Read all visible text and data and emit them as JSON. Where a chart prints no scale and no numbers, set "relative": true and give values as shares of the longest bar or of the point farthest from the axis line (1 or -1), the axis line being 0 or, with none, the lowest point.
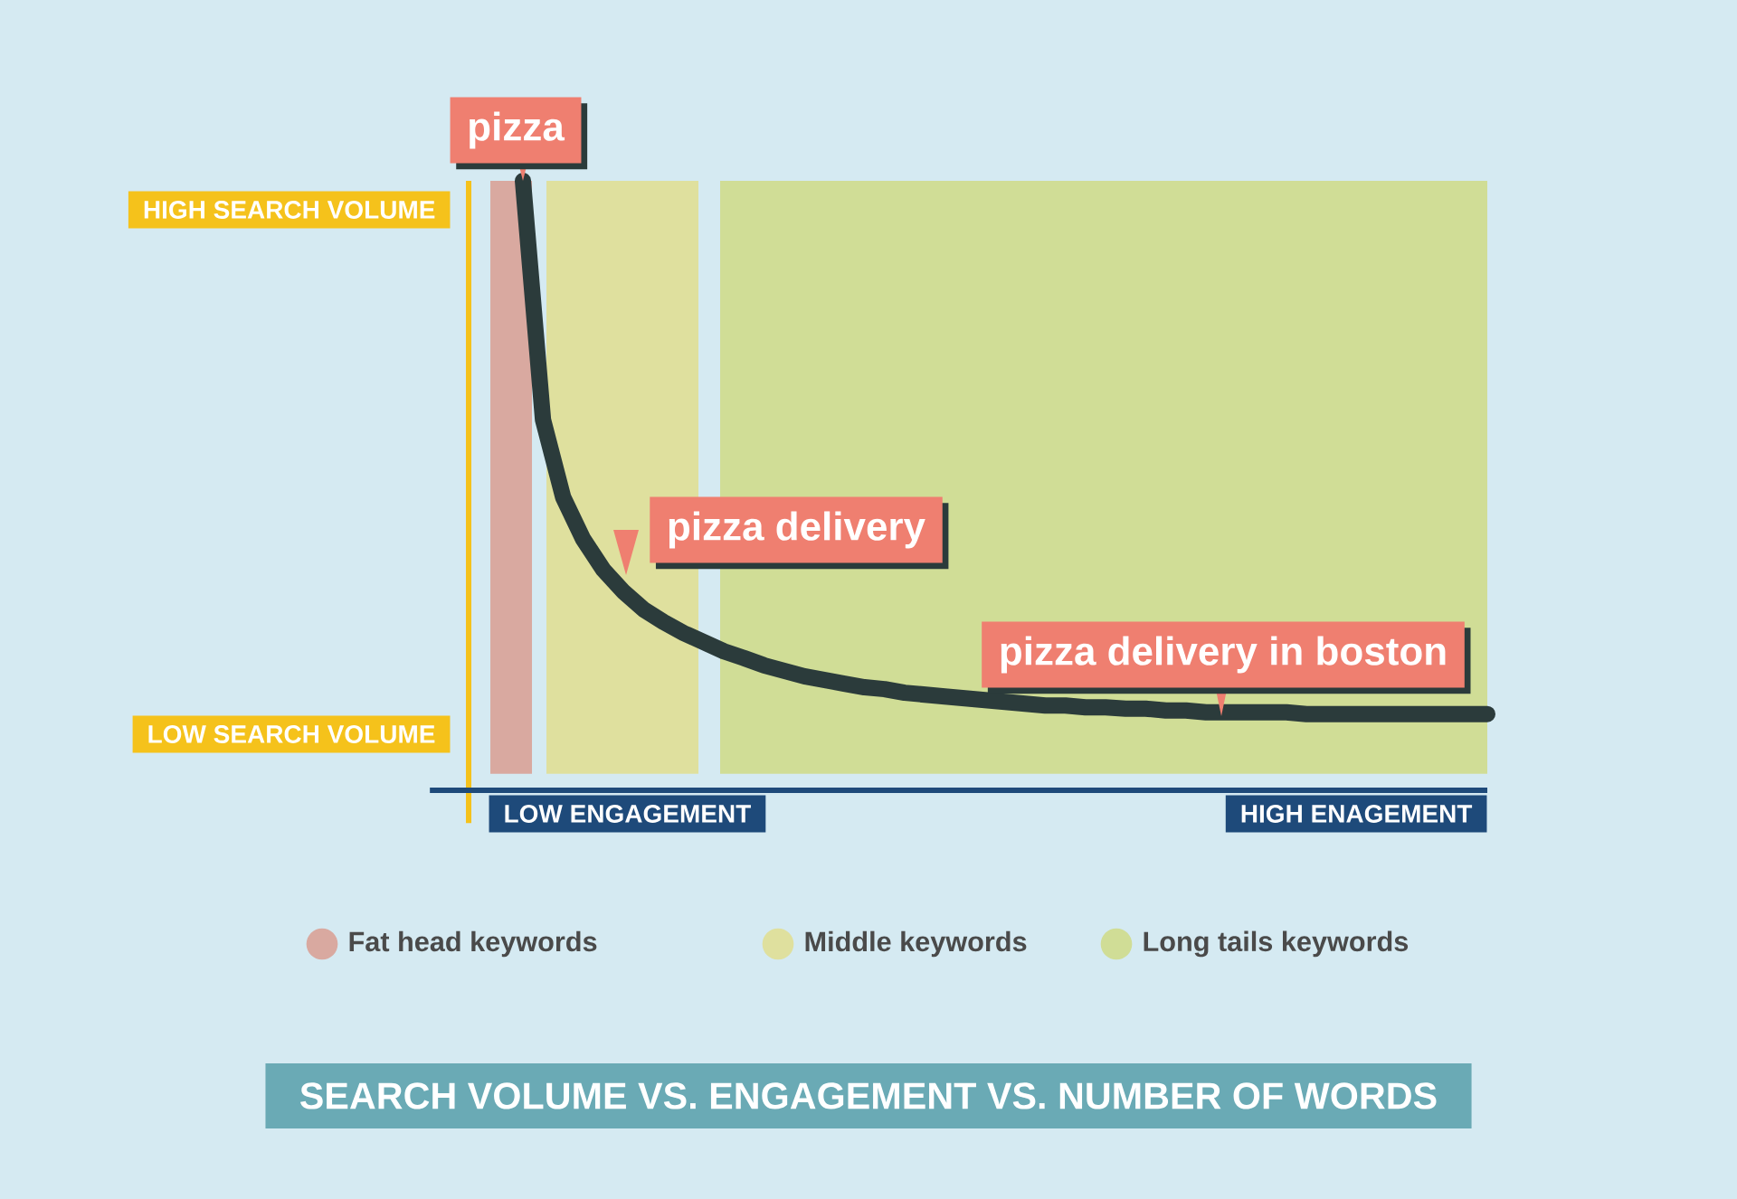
{
  "chart_data": {
    "type": "line",
    "relative": true,
    "title": "SEARCH VOLUME VS. ENGAGEMENT VS. NUMBER OF WORDS",
    "categories": [
      null,
      null,
      null,
      null,
      null,
      null,
      null,
      null,
      null,
      null,
      null,
      null,
      null,
      null,
      null,
      null,
      null,
      null,
      null,
      null,
      null,
      null,
      null,
      null,
      null,
      null,
      null,
      null,
      null,
      null,
      null,
      null,
      null,
      null,
      null,
      null,
      null,
      null,
      null,
      null,
      null,
      null,
      null,
      null,
      null,
      null,
      null,
      null,
      null
    ],
    "series": [
      {
        "color": "#2b3b3b",
        "values": [
          1.0,
          0.608,
          0.481,
          0.412,
          0.362,
          0.326,
          0.297,
          0.276,
          0.258,
          0.243,
          0.228,
          0.217,
          0.205,
          0.196,
          0.187,
          0.181,
          0.175,
          0.169,
          0.166,
          0.16,
          0.157,
          0.154,
          0.151,
          0.148,
          0.145,
          0.142,
          0.139,
          0.139,
          0.136,
          0.136,
          0.134,
          0.134,
          0.131,
          0.131,
          0.128,
          0.128,
          0.128,
          0.128,
          0.128,
          0.125,
          0.125,
          0.125,
          0.125,
          0.125,
          0.125,
          0.125,
          0.125,
          0.125,
          0.125
        ]
      }
    ],
    "annotations": [
      "HIGH SEARCH VOLUME",
      "LOW SEARCH VOLUME",
      "LOW ENGAGEMENT",
      "HIGH ENAGEMENT",
      "pizza",
      "pizza delivery",
      "pizza delivery in boston",
      "Fat head keywords",
      "Middle keywords",
      "Long tails keywords"
    ],
    "marker": "none",
    "line_style": "solid"
  }
}
